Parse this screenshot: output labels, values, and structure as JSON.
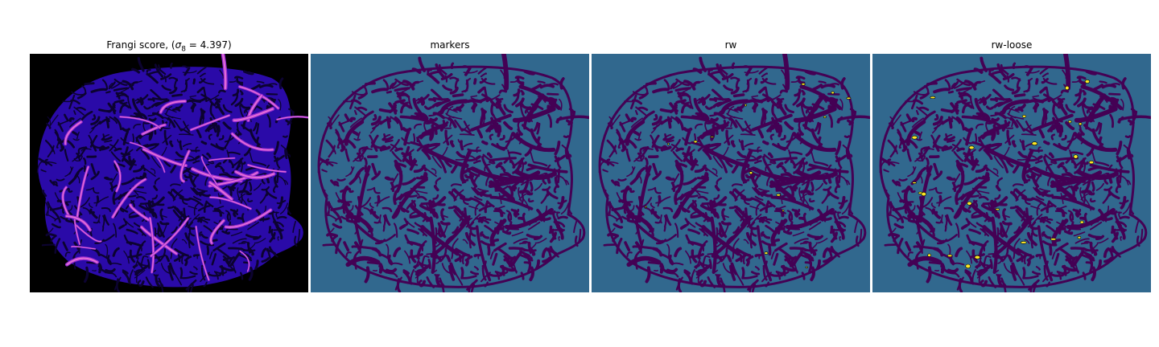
{
  "figure": {
    "panels": [
      {
        "title_prefix": "Frangi score, (",
        "title_symbol": "σ",
        "title_subscript": "8",
        "title_suffix": " = 4.397)"
      },
      {
        "title": "markers"
      },
      {
        "title": "rw"
      },
      {
        "title": "rw-loose"
      }
    ],
    "colors": {
      "frangi_background": "#000000",
      "frangi_tissue": "#2a0aa8",
      "frangi_ridge": "#9a2bd0",
      "frangi_ridge_high": "#f07ad8",
      "label_background": "#31688e",
      "label_vessel": "#440154",
      "label_highlight": "#fde725"
    }
  }
}
